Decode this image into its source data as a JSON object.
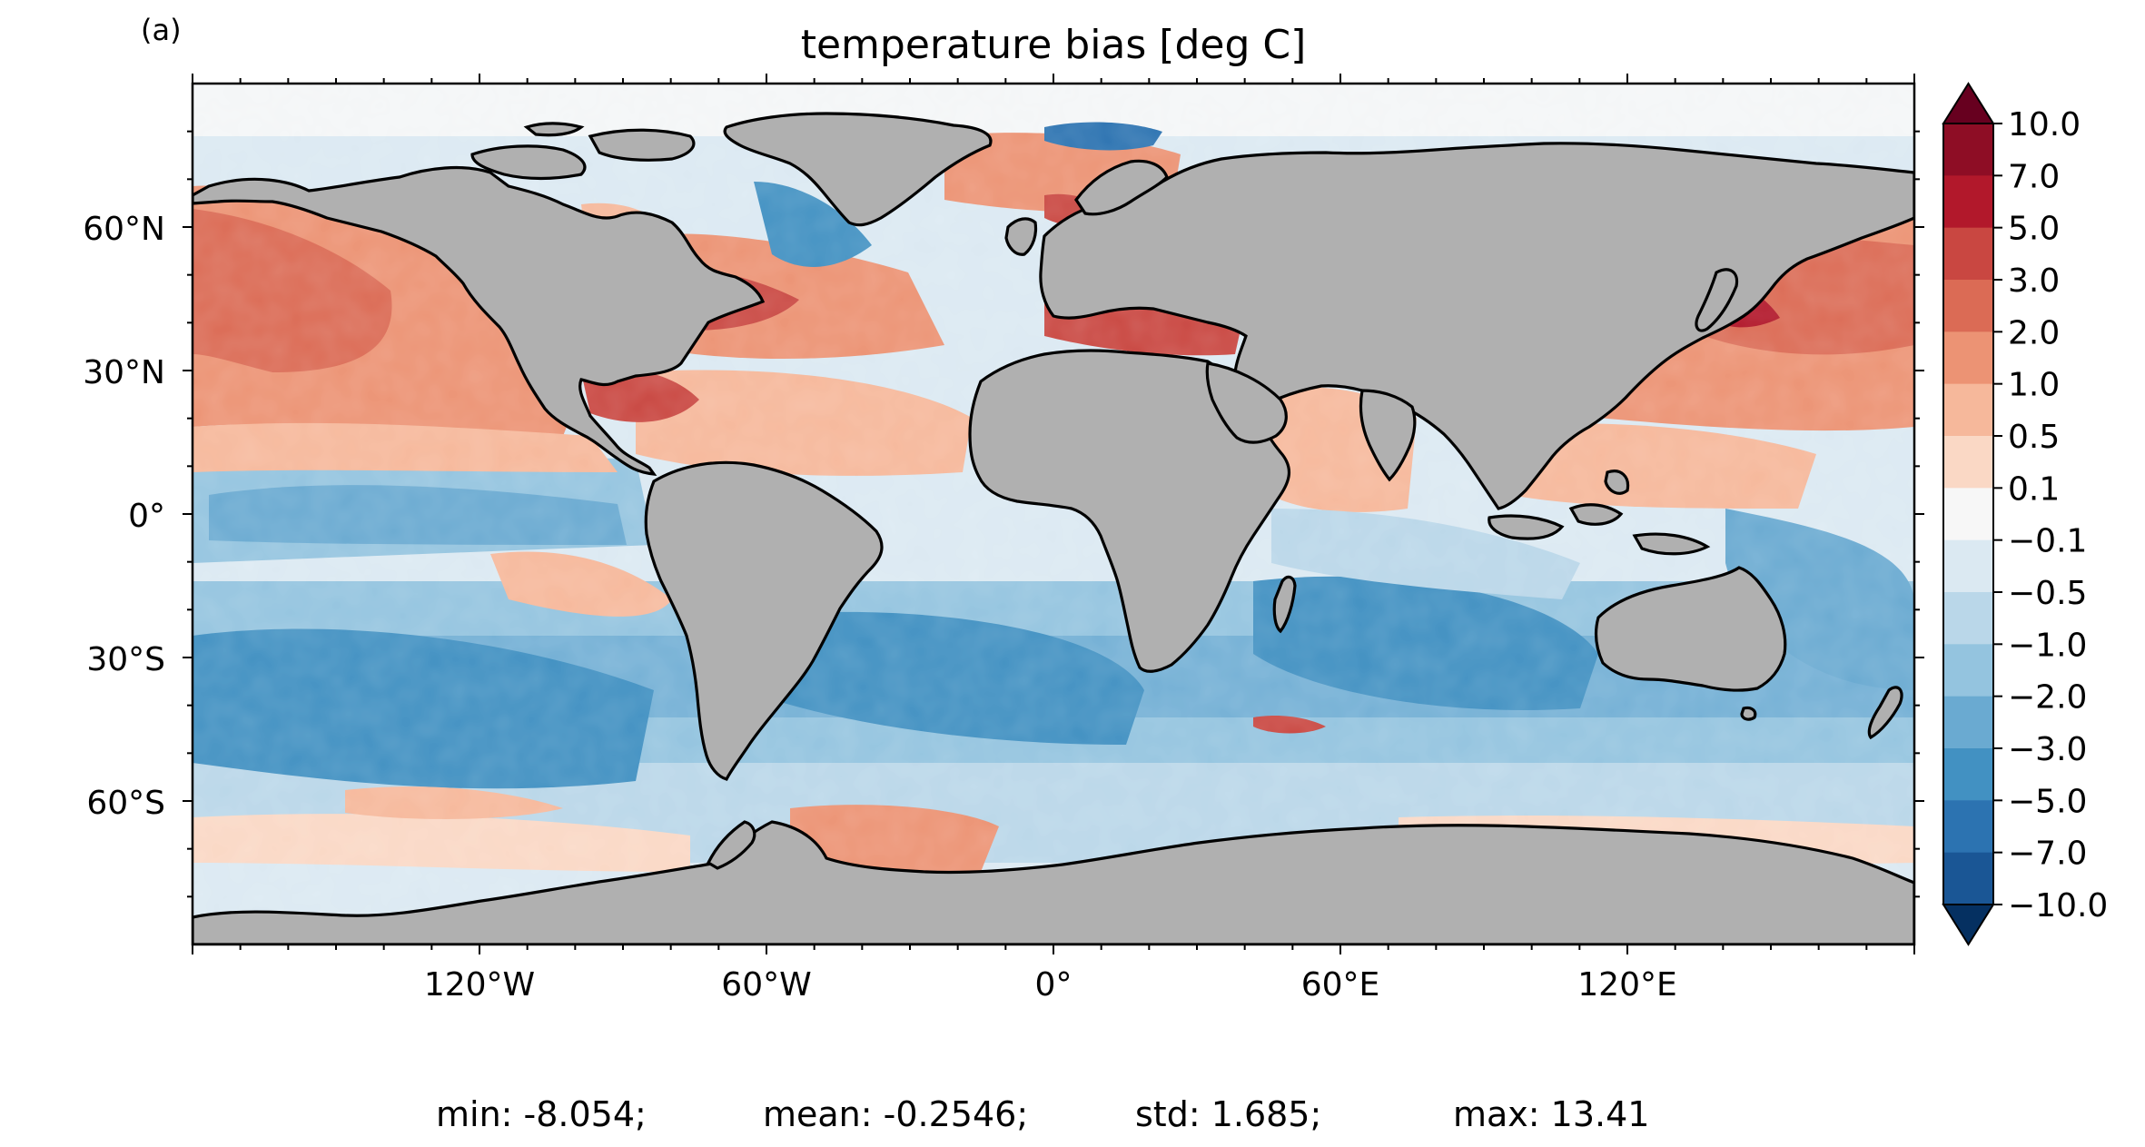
{
  "panel_label": "(a)",
  "title": "temperature bias [deg C]",
  "lat_ticks": [
    {
      "label": "60°N",
      "lat": 60
    },
    {
      "label": "30°N",
      "lat": 30
    },
    {
      "label": "0°",
      "lat": 0
    },
    {
      "label": "30°S",
      "lat": -30
    },
    {
      "label": "60°S",
      "lat": -60
    }
  ],
  "lon_ticks": [
    {
      "label": "120°W",
      "lon": -120
    },
    {
      "label": "60°W",
      "lon": -60
    },
    {
      "label": "0°",
      "lon": 0
    },
    {
      "label": "60°E",
      "lon": 60
    },
    {
      "label": "120°E",
      "lon": 120
    }
  ],
  "colorbar": {
    "levels": [
      "10.0",
      "7.0",
      "5.0",
      "3.0",
      "2.0",
      "1.0",
      "0.5",
      "0.1",
      "−0.1",
      "−0.5",
      "−1.0",
      "−2.0",
      "−3.0",
      "−5.0",
      "−7.0",
      "−10.0"
    ],
    "colors": [
      "#8e0d25",
      "#b2182b",
      "#c94741",
      "#db6b55",
      "#ec9374",
      "#f6b89b",
      "#fad8c5",
      "#f7f7f7",
      "#dbe9f2",
      "#bad7e9",
      "#94c4df",
      "#6aaad1",
      "#4291c2",
      "#2c73b1",
      "#1a5695"
    ],
    "over_color": "#67001f",
    "under_color": "#053061"
  },
  "stats": {
    "min": "min: -8.054;",
    "mean": "mean: -0.2546;",
    "std": "std: 1.685;",
    "max": "max: 13.41"
  },
  "colors": {
    "land": "#b0b0b0",
    "coast": "#000000"
  }
}
